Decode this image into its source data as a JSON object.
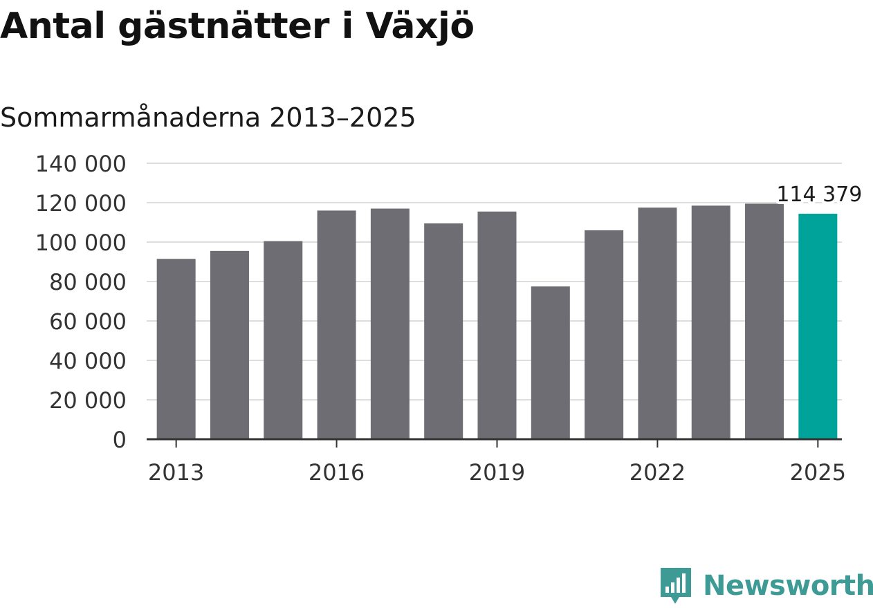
{
  "header": {
    "title": "Antal gästnätter i Växjö",
    "subtitle": "Sommarmånaderna 2013–2025"
  },
  "brand": {
    "name": "Newsworthy",
    "icon": "newsworthy-logo-icon",
    "color": "#3d9a95"
  },
  "colors": {
    "bar": "#6e6d73",
    "highlight": "#00a399",
    "grid": "#dddddd",
    "axis": "#333333"
  },
  "chart_data": {
    "type": "bar",
    "title": "Antal gästnätter i Växjö",
    "subtitle": "Sommarmånaderna 2013–2025",
    "categories": [
      "2013",
      "2014",
      "2015",
      "2016",
      "2017",
      "2018",
      "2019",
      "2020",
      "2021",
      "2022",
      "2023",
      "2024",
      "2025"
    ],
    "values": [
      91500,
      95500,
      100500,
      116000,
      117000,
      109500,
      115500,
      77500,
      106000,
      117500,
      118500,
      119500,
      114379
    ],
    "highlight_index": 12,
    "ylim": [
      0,
      140000
    ],
    "yticks": [
      0,
      20000,
      40000,
      60000,
      80000,
      100000,
      120000,
      140000
    ],
    "ytick_labels": [
      "0",
      "20 000",
      "40 000",
      "60 000",
      "80 000",
      "100 000",
      "120 000",
      "140 000"
    ],
    "xticks": [
      "2013",
      "2016",
      "2019",
      "2022",
      "2025"
    ],
    "annotations": [
      {
        "category": "2025",
        "text": "114 379"
      }
    ],
    "grid": true,
    "xlabel": "",
    "ylabel": ""
  }
}
